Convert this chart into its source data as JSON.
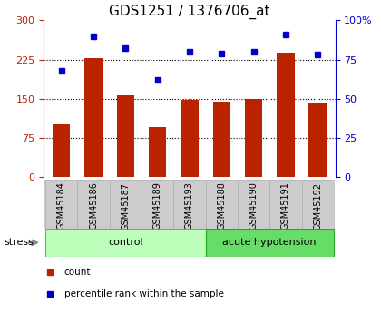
{
  "title": "GDS1251 / 1376706_at",
  "samples": [
    "GSM45184",
    "GSM45186",
    "GSM45187",
    "GSM45189",
    "GSM45193",
    "GSM45188",
    "GSM45190",
    "GSM45191",
    "GSM45192"
  ],
  "counts": [
    100,
    228,
    157,
    95,
    148,
    145,
    150,
    238,
    143
  ],
  "percentiles": [
    68,
    90,
    82,
    62,
    80,
    79,
    80,
    91,
    78
  ],
  "ylim_left": [
    0,
    300
  ],
  "ylim_right": [
    0,
    100
  ],
  "yticks_left": [
    0,
    75,
    150,
    225,
    300
  ],
  "yticks_right": [
    0,
    25,
    50,
    75,
    100
  ],
  "bar_color": "#bb2200",
  "dot_color": "#0000cc",
  "control_color": "#bbffbb",
  "acute_color": "#66dd66",
  "sample_bg": "#cccccc",
  "control_samples": 5,
  "acute_samples": 4,
  "control_label": "control",
  "acute_label": "acute hypotension",
  "stress_label": "stress",
  "legend_count": "count",
  "legend_percentile": "percentile rank within the sample",
  "title_fontsize": 11,
  "tick_fontsize": 8,
  "label_fontsize": 7,
  "group_fontsize": 8
}
